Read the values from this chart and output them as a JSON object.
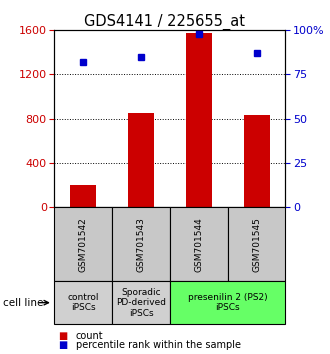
{
  "title": "GDS4141 / 225655_at",
  "samples": [
    "GSM701542",
    "GSM701543",
    "GSM701544",
    "GSM701545"
  ],
  "counts": [
    200,
    850,
    1570,
    830
  ],
  "percentiles": [
    82,
    85,
    98,
    87
  ],
  "bar_color": "#cc0000",
  "marker_color": "#0000cc",
  "left_ylim": [
    0,
    1600
  ],
  "right_ylim": [
    0,
    100
  ],
  "left_yticks": [
    0,
    400,
    800,
    1200,
    1600
  ],
  "right_yticks": [
    0,
    25,
    50,
    75,
    100
  ],
  "right_yticklabels": [
    "0",
    "25",
    "50",
    "75",
    "100%"
  ],
  "groups": [
    {
      "label": "control\niPSCs",
      "span": [
        0,
        1
      ],
      "color": "#d0d0d0"
    },
    {
      "label": "Sporadic\nPD-derived\niPSCs",
      "span": [
        1,
        2
      ],
      "color": "#d0d0d0"
    },
    {
      "label": "presenilin 2 (PS2)\niPSCs",
      "span": [
        2,
        4
      ],
      "color": "#66ff66"
    }
  ],
  "cell_line_label": "cell line",
  "legend_count_label": "count",
  "legend_percentile_label": "percentile rank within the sample",
  "figsize": [
    3.3,
    3.54
  ],
  "dpi": 100,
  "sample_box_color": "#c8c8c8"
}
